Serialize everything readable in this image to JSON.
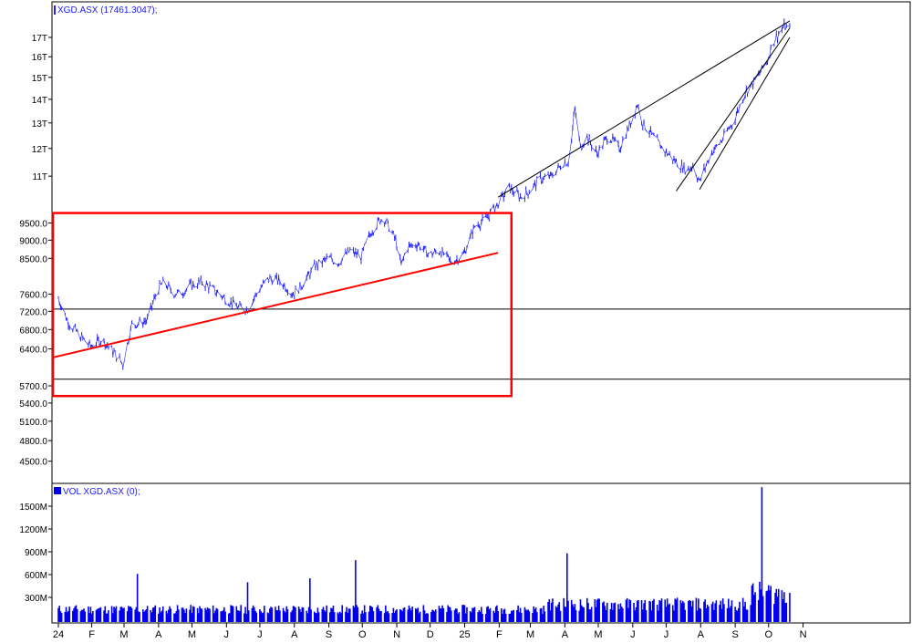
{
  "price_panel": {
    "title": "XGD.ASX (17461.3047);",
    "color": "#2020ff"
  },
  "volume_panel": {
    "title": "VOL XGD.ASX (0);",
    "color": "#0000ee"
  },
  "chart_data": [
    {
      "type": "line",
      "title": "XGD.ASX (17461.3047);",
      "scale": "log",
      "y_tick_labels": [
        "17T",
        "16T",
        "15T",
        "14T",
        "13T",
        "12T",
        "11T",
        "9500.0",
        "9000.0",
        "8500.0",
        "7600.0",
        "7200.0",
        "6800.0",
        "6400.0",
        "5700.0",
        "5400.0",
        "5100.0",
        "4800.0",
        "4500.0"
      ],
      "x_tick_labels": [
        "24",
        "F",
        "M",
        "A",
        "M",
        "J",
        "J",
        "A",
        "S",
        "O",
        "N",
        "D",
        "25",
        "F",
        "M",
        "A",
        "M",
        "J",
        "J",
        "A",
        "S",
        "O",
        "N"
      ],
      "series": [
        {
          "x": [
            "2024-01-02",
            "2024-01-10",
            "2024-01-20",
            "2024-01-31",
            "2024-02-10",
            "2024-02-20",
            "2024-02-29",
            "2024-03-08",
            "2024-03-15",
            "2024-03-22",
            "2024-03-31",
            "2024-04-06",
            "2024-04-13",
            "2024-04-20",
            "2024-04-30",
            "2024-05-10",
            "2024-05-20",
            "2024-05-31",
            "2024-06-10",
            "2024-06-20",
            "2024-06-30",
            "2024-07-10",
            "2024-07-20",
            "2024-07-31",
            "2024-08-10",
            "2024-08-20",
            "2024-08-31",
            "2024-09-10",
            "2024-09-20",
            "2024-09-30",
            "2024-10-10",
            "2024-10-20",
            "2024-10-31",
            "2024-11-05",
            "2024-11-10",
            "2024-11-20",
            "2024-11-30",
            "2024-12-10",
            "2024-12-20",
            "2024-12-31",
            "2025-01-10",
            "2025-01-20",
            "2025-01-31",
            "2025-02-10",
            "2025-02-20",
            "2025-02-28",
            "2025-03-10",
            "2025-03-20",
            "2025-03-31",
            "2025-04-05",
            "2025-04-10",
            "2025-04-15",
            "2025-04-20",
            "2025-04-30",
            "2025-05-10",
            "2025-05-20",
            "2025-05-31",
            "2025-06-05",
            "2025-06-10",
            "2025-06-20",
            "2025-06-30",
            "2025-07-10",
            "2025-07-20",
            "2025-07-25",
            "2025-07-31",
            "2025-08-10",
            "2025-08-20",
            "2025-08-31",
            "2025-09-10",
            "2025-09-20",
            "2025-09-30",
            "2025-10-05",
            "2025-10-10",
            "2025-10-15",
            "2025-10-20"
          ],
          "y": [
            7500,
            7000,
            6700,
            6450,
            6600,
            6350,
            6100,
            6900,
            6950,
            7000,
            7700,
            7900,
            7650,
            7600,
            7800,
            7900,
            7700,
            7500,
            7300,
            7250,
            7700,
            8000,
            7900,
            7600,
            7900,
            8300,
            8500,
            8400,
            8700,
            8550,
            9300,
            9700,
            9000,
            8300,
            8800,
            8900,
            8600,
            8700,
            8400,
            8600,
            9400,
            9600,
            10100,
            10600,
            10300,
            10500,
            10900,
            11000,
            11500,
            11500,
            13600,
            12000,
            12500,
            11800,
            12500,
            12000,
            13100,
            13800,
            13000,
            12400,
            11900,
            11500,
            11200,
            11400,
            10800,
            11800,
            12300,
            13100,
            14300,
            14900,
            15800,
            16800,
            17200,
            17600,
            17400
          ]
        }
      ],
      "reference_lines": [
        7250,
        5820
      ],
      "annotations": {
        "rectangle": {
          "x_from": "2024-01-02",
          "x_to": "2025-02-12",
          "y_from": 5520,
          "y_to": 9800,
          "color": "#ff0000"
        },
        "red_support_line": {
          "from": [
            "2024-01-02",
            6230
          ],
          "to": [
            "2025-01-31",
            8650
          ],
          "color": "#ff0000"
        },
        "black_lines": [
          {
            "from": [
              "2025-01-31",
              10300
            ],
            "to": [
              "2025-10-20",
              17900
            ]
          },
          {
            "from": [
              "2025-07-10",
              10500
            ],
            "to": [
              "2025-10-20",
              17500
            ]
          },
          {
            "from": [
              "2025-07-31",
              10550
            ],
            "to": [
              "2025-10-20",
              17000
            ]
          }
        ]
      }
    },
    {
      "type": "bar",
      "title": "VOL XGD.ASX (0);",
      "y_tick_labels": [
        "1500M",
        "1200M",
        "900M",
        "600M",
        "300M"
      ],
      "ylim": [
        0,
        1800
      ],
      "spikes": [
        {
          "x": "2024-03-13",
          "value": 610
        },
        {
          "x": "2024-06-20",
          "value": 500
        },
        {
          "x": "2024-08-15",
          "value": 550
        },
        {
          "x": "2024-09-25",
          "value": 790
        },
        {
          "x": "2025-04-03",
          "value": 880
        },
        {
          "x": "2025-09-25",
          "value": 1750
        }
      ],
      "baseline_range": [
        80,
        250
      ]
    }
  ]
}
